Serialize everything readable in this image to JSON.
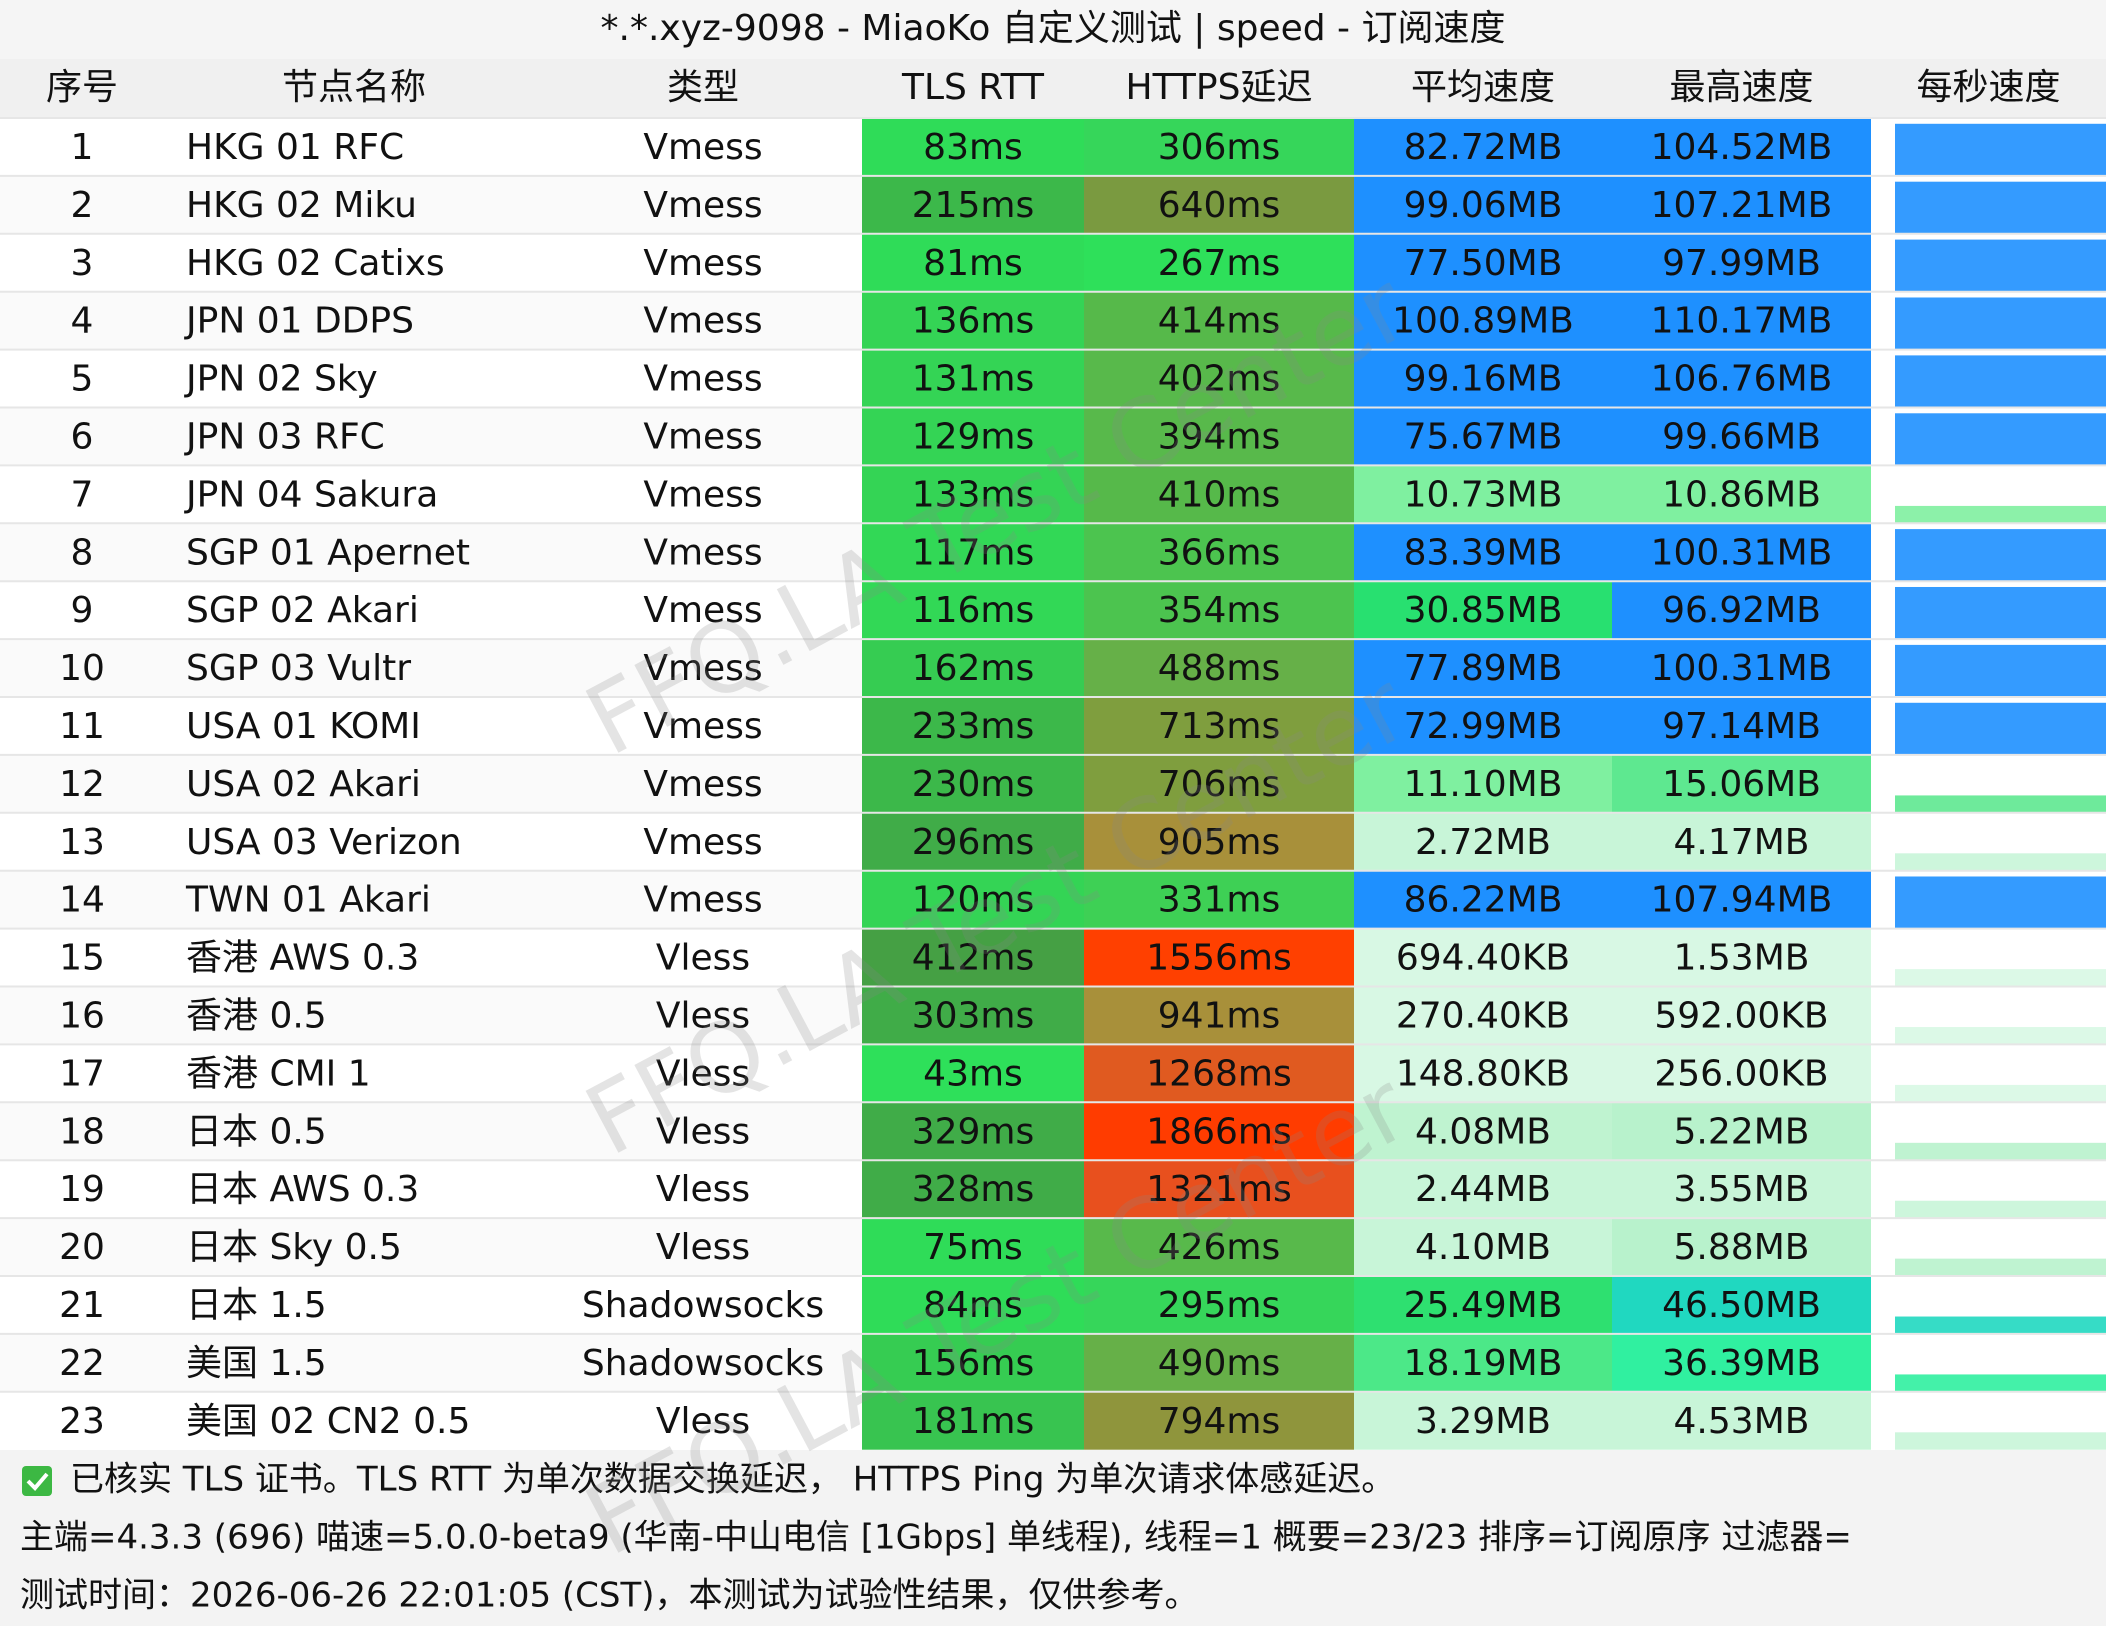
{
  "header": {
    "title": "*.*.xyz-9098 - MiaoKo 自定义测试 | speed - 订阅速度"
  },
  "table": {
    "columns": [
      "序号",
      "节点名称",
      "类型",
      "TLS RTT",
      "HTTPS延迟",
      "平均速度",
      "最高速度",
      "每秒速度"
    ],
    "rows": [
      [
        "1",
        "HKG 01 RFC",
        "Vmess",
        "83ms",
        "306ms",
        "82.72MB",
        "104.52MB"
      ],
      [
        "2",
        "HKG 02 Miku",
        "Vmess",
        "215ms",
        "640ms",
        "99.06MB",
        "107.21MB"
      ],
      [
        "3",
        "HKG 02 Catixs",
        "Vmess",
        "81ms",
        "267ms",
        "77.50MB",
        "97.99MB"
      ],
      [
        "4",
        "JPN 01 DDPS",
        "Vmess",
        "136ms",
        "414ms",
        "100.89MB",
        "110.17MB"
      ],
      [
        "5",
        "JPN 02 Sky",
        "Vmess",
        "131ms",
        "402ms",
        "99.16MB",
        "106.76MB"
      ],
      [
        "6",
        "JPN 03 RFC",
        "Vmess",
        "129ms",
        "394ms",
        "75.67MB",
        "99.66MB"
      ],
      [
        "7",
        "JPN 04 Sakura",
        "Vmess",
        "133ms",
        "410ms",
        "10.73MB",
        "10.86MB"
      ],
      [
        "8",
        "SGP 01 Apernet",
        "Vmess",
        "117ms",
        "366ms",
        "83.39MB",
        "100.31MB"
      ],
      [
        "9",
        "SGP 02 Akari",
        "Vmess",
        "116ms",
        "354ms",
        "30.85MB",
        "96.92MB"
      ],
      [
        "10",
        "SGP 03 Vultr",
        "Vmess",
        "162ms",
        "488ms",
        "77.89MB",
        "100.31MB"
      ],
      [
        "11",
        "USA 01 KOMI",
        "Vmess",
        "233ms",
        "713ms",
        "72.99MB",
        "97.14MB"
      ],
      [
        "12",
        "USA 02 Akari",
        "Vmess",
        "230ms",
        "706ms",
        "11.10MB",
        "15.06MB"
      ],
      [
        "13",
        "USA 03 Verizon",
        "Vmess",
        "296ms",
        "905ms",
        "2.72MB",
        "4.17MB"
      ],
      [
        "14",
        "TWN 01 Akari",
        "Vmess",
        "120ms",
        "331ms",
        "86.22MB",
        "107.94MB"
      ],
      [
        "15",
        "香港 AWS 0.3",
        "Vless",
        "412ms",
        "1556ms",
        "694.40KB",
        "1.53MB"
      ],
      [
        "16",
        "香港 0.5",
        "Vless",
        "303ms",
        "941ms",
        "270.40KB",
        "592.00KB"
      ],
      [
        "17",
        "香港 CMI 1",
        "Vless",
        "43ms",
        "1268ms",
        "148.80KB",
        "256.00KB"
      ],
      [
        "18",
        "日本 0.5",
        "Vless",
        "329ms",
        "1866ms",
        "4.08MB",
        "5.22MB"
      ],
      [
        "19",
        "日本 AWS 0.3",
        "Vless",
        "328ms",
        "1321ms",
        "2.44MB",
        "3.55MB"
      ],
      [
        "20",
        "日本 Sky 0.5",
        "Vless",
        "75ms",
        "426ms",
        "4.10MB",
        "5.88MB"
      ],
      [
        "21",
        "日本 1.5",
        "Shadowsocks",
        "84ms",
        "295ms",
        "25.49MB",
        "46.50MB"
      ],
      [
        "22",
        "美国 1.5",
        "Shadowsocks",
        "156ms",
        "490ms",
        "18.19MB",
        "36.39MB"
      ],
      [
        "23",
        "美国 02 CN2 0.5",
        "Vless",
        "181ms",
        "794ms",
        "3.29MB",
        "4.53MB"
      ]
    ],
    "cell_colors": [
      [
        "#2fdc58",
        "#36d65a",
        "#1e90ff",
        "#1e90ff"
      ],
      [
        "#3cb84a",
        "#7a9a40",
        "#1e90ff",
        "#1e90ff"
      ],
      [
        "#2fdc58",
        "#2ee05a",
        "#1e90ff",
        "#1e90ff"
      ],
      [
        "#34d455",
        "#56b94a",
        "#1e90ff",
        "#1e90ff"
      ],
      [
        "#34d455",
        "#58b94b",
        "#1e90ff",
        "#1e90ff"
      ],
      [
        "#34d455",
        "#58b94b",
        "#1e90ff",
        "#1e90ff"
      ],
      [
        "#34d455",
        "#56b94a",
        "#7ff0a0",
        "#7ff0a0"
      ],
      [
        "#32d856",
        "#4cc44f",
        "#1e90ff",
        "#1e90ff"
      ],
      [
        "#32d856",
        "#4cc44f",
        "#28e070",
        "#1e90ff"
      ],
      [
        "#36cc52",
        "#66b048",
        "#1e90ff",
        "#1e90ff"
      ],
      [
        "#3cb84a",
        "#7f9e3e",
        "#1e90ff",
        "#1e90ff"
      ],
      [
        "#3cb84a",
        "#7f9e3e",
        "#7ff0a0",
        "#5ee890"
      ],
      [
        "#40ac48",
        "#a8903a",
        "#c8f5d8",
        "#c8f5d8"
      ],
      [
        "#34d455",
        "#3ed055",
        "#1e90ff",
        "#1e90ff"
      ],
      [
        "#45a044",
        "#ff4000",
        "#d8f8e4",
        "#d8f8e4"
      ],
      [
        "#40ac48",
        "#a8903a",
        "#d8f8e4",
        "#d8f8e4"
      ],
      [
        "#2ee05a",
        "#e05a20",
        "#d8f8e4",
        "#d8f8e4"
      ],
      [
        "#40ac48",
        "#ff3c00",
        "#bff3d0",
        "#b8f2cc"
      ],
      [
        "#40ac48",
        "#e8501e",
        "#c8f5d8",
        "#c8f5d8"
      ],
      [
        "#2fdc58",
        "#58b94b",
        "#c8f5d8",
        "#b8f2cc"
      ],
      [
        "#2fdc58",
        "#36d65a",
        "#2ee070",
        "#20d8c0"
      ],
      [
        "#36cc52",
        "#66b048",
        "#4ce888",
        "#30f0a0"
      ],
      [
        "#38c450",
        "#8f953c",
        "#c8f5d8",
        "#c8f5d8"
      ]
    ]
  },
  "footer": {
    "lines": [
      "已核实 TLS 证书。TLS RTT 为单次数据交换延迟， HTTPS Ping 为单次请求体感延迟。",
      "主端=4.3.3 (696) 喵速=5.0.0-beta9 (华南-中山电信 [1Gbps] 单线程), 线程=1 概要=23/23 排序=订阅原序 过滤器=",
      "测试时间：2026-06-26 22:01:05 (CST)，本测试为试验性结果，仅供参考。"
    ]
  },
  "watermark": "FFQ.LA Test Center"
}
